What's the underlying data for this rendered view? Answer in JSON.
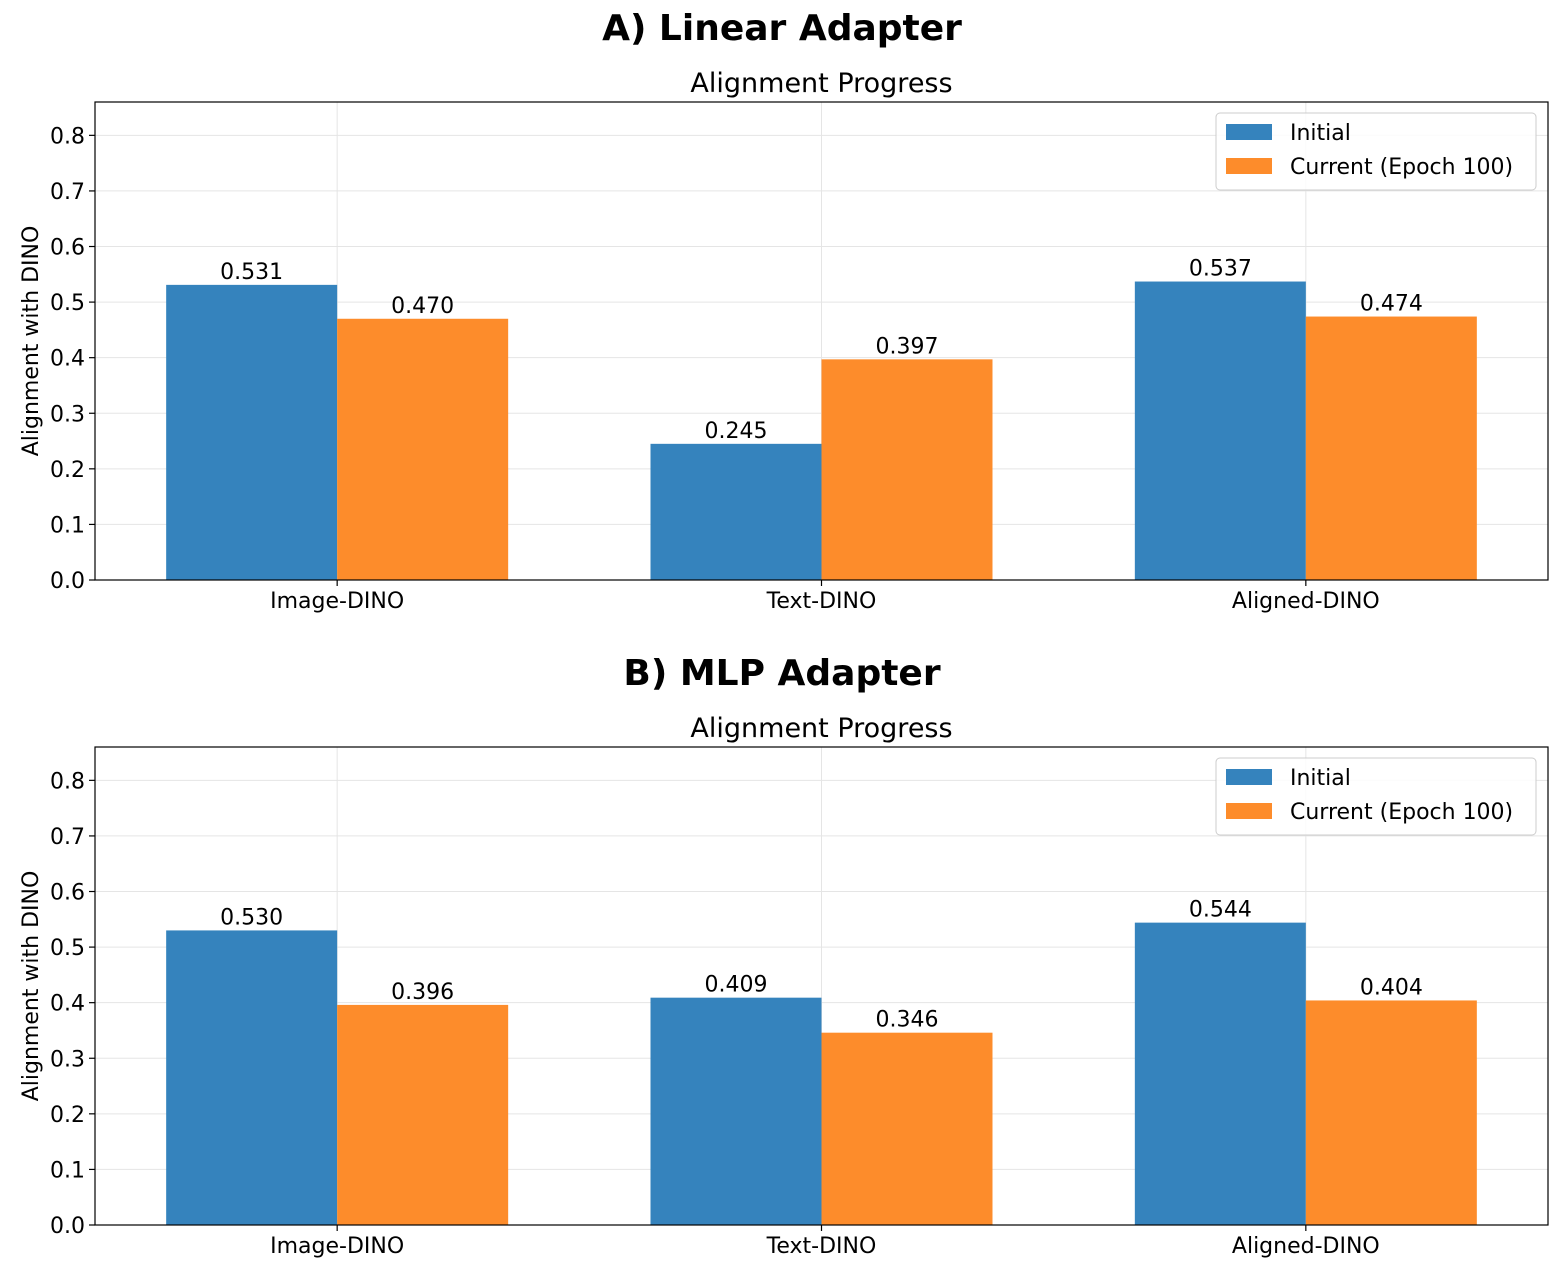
{
  "colors": {
    "initial": "#3583bd",
    "current": "#fd8c2b",
    "grid": "#e5e5e5"
  },
  "chart_data": [
    {
      "type": "bar",
      "panel_title": "A) Linear Adapter",
      "title": "Alignment Progress",
      "xlabel": "",
      "ylabel": "Alignment with DINO",
      "categories": [
        "Image-DINO",
        "Text-DINO",
        "Aligned-DINO"
      ],
      "series": [
        {
          "name": "Initial",
          "values": [
            0.531,
            0.245,
            0.537
          ]
        },
        {
          "name": "Current (Epoch 100)",
          "values": [
            0.47,
            0.397,
            0.474
          ]
        }
      ],
      "value_labels": [
        [
          "0.531",
          "0.245",
          "0.537"
        ],
        [
          "0.470",
          "0.397",
          "0.474"
        ]
      ],
      "ylim": [
        0,
        0.86
      ],
      "yticks": [
        "0.0",
        "0.1",
        "0.2",
        "0.3",
        "0.4",
        "0.5",
        "0.6",
        "0.7",
        "0.8"
      ],
      "grid": true,
      "legend_position": "top-right"
    },
    {
      "type": "bar",
      "panel_title": "B) MLP Adapter",
      "title": "Alignment Progress",
      "xlabel": "",
      "ylabel": "Alignment with DINO",
      "categories": [
        "Image-DINO",
        "Text-DINO",
        "Aligned-DINO"
      ],
      "series": [
        {
          "name": "Initial",
          "values": [
            0.53,
            0.409,
            0.544
          ]
        },
        {
          "name": "Current (Epoch 100)",
          "values": [
            0.396,
            0.346,
            0.404
          ]
        }
      ],
      "value_labels": [
        [
          "0.530",
          "0.409",
          "0.544"
        ],
        [
          "0.396",
          "0.346",
          "0.404"
        ]
      ],
      "ylim": [
        0,
        0.86
      ],
      "yticks": [
        "0.0",
        "0.1",
        "0.2",
        "0.3",
        "0.4",
        "0.5",
        "0.6",
        "0.7",
        "0.8"
      ],
      "grid": true,
      "legend_position": "top-right"
    }
  ]
}
